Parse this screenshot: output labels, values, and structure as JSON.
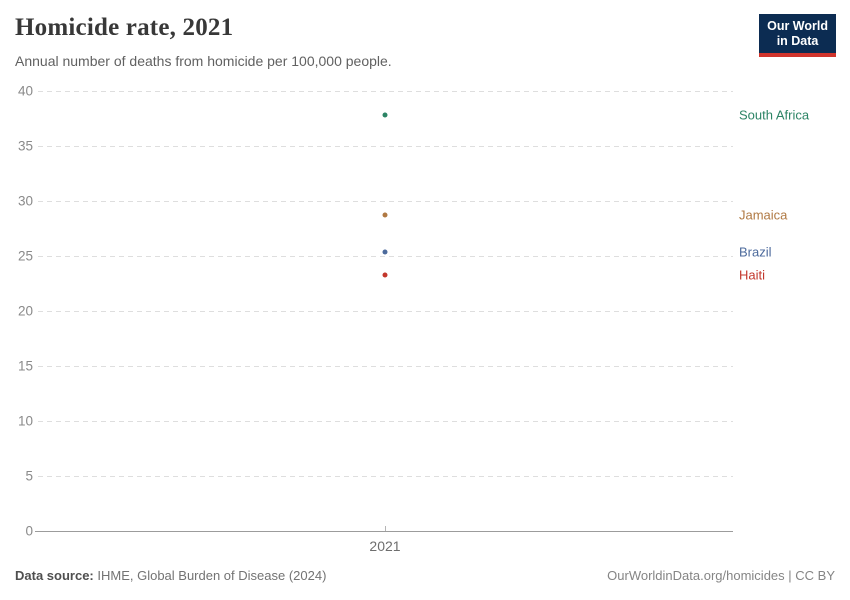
{
  "header": {
    "title": "Homicide rate, 2021",
    "subtitle": "Annual number of deaths from homicide per 100,000 people.",
    "logo": {
      "line1": "Our World",
      "line2": "in Data",
      "bg_color": "#0C2C52",
      "accent_color": "#D0342C"
    }
  },
  "chart_data": {
    "type": "scatter",
    "title": "Homicide rate, 2021",
    "subtitle": "Annual number of deaths from homicide per 100,000 people.",
    "xlabel": "",
    "ylabel": "",
    "x": [
      2021
    ],
    "x_tick_label": "2021",
    "ylim": [
      0,
      40
    ],
    "yticks": [
      0,
      5,
      10,
      15,
      20,
      25,
      30,
      35,
      40
    ],
    "grid": "horizontal-dashed",
    "legend_position": "right-of-plot",
    "series": [
      {
        "name": "South Africa",
        "values": [
          37.8
        ],
        "color": "#2C8465"
      },
      {
        "name": "Jamaica",
        "values": [
          28.7
        ],
        "color": "#B07943"
      },
      {
        "name": "Brazil",
        "values": [
          25.4
        ],
        "color": "#4C6A9C"
      },
      {
        "name": "Haiti",
        "values": [
          23.3
        ],
        "color": "#C3372C"
      }
    ]
  },
  "footer": {
    "source_label": "Data source:",
    "source_value": " IHME, Global Burden of Disease (2024)",
    "attribution": "OurWorldinData.org/homicides | CC BY"
  }
}
